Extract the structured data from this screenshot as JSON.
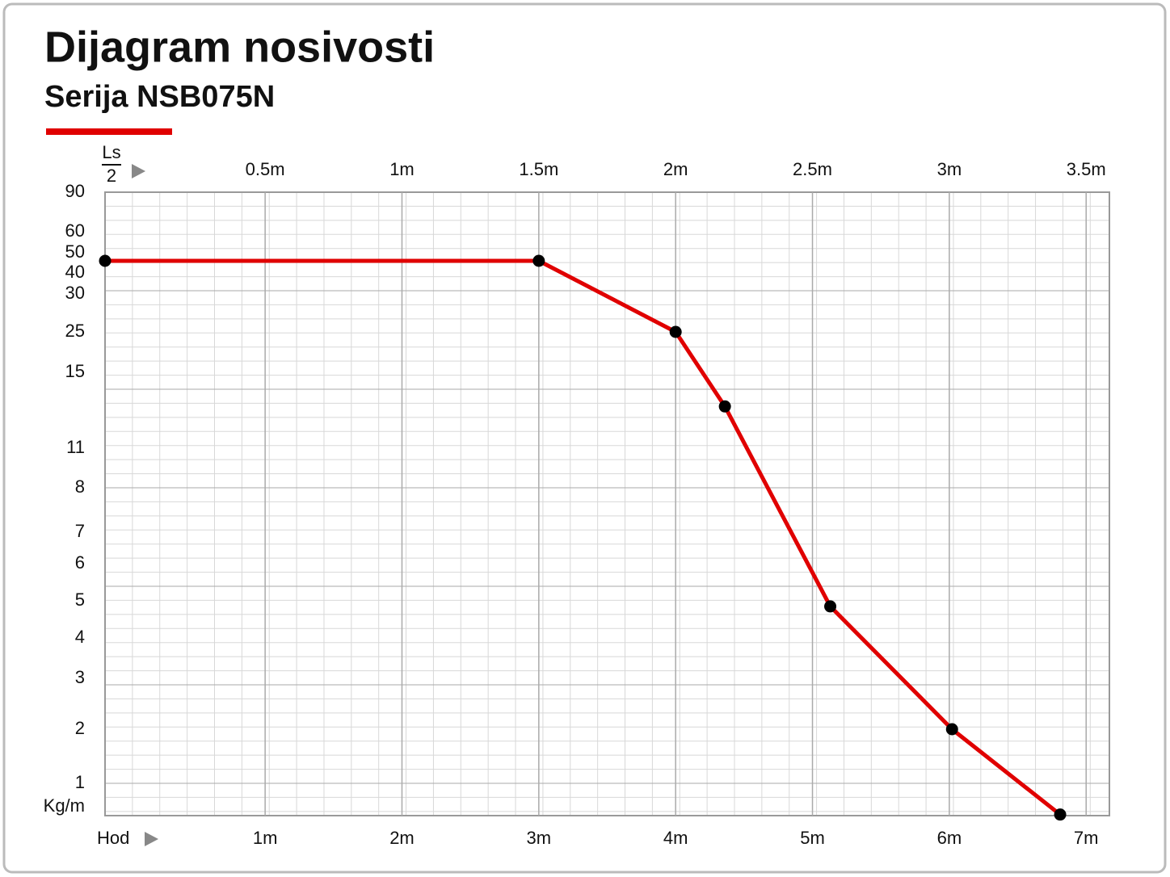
{
  "chart_data": {
    "type": "line",
    "title": "Dijagram nosivosti",
    "subtitle": "Serija NSB075N",
    "x_label": "Hod",
    "x2_label_top": "Ls",
    "x2_label_bottom": "2",
    "y_label": "Kg/m",
    "x": [
      -0.17,
      3,
      4,
      4.36,
      5.13,
      6.02,
      6.81
    ],
    "series": [
      {
        "name": "NSB075N",
        "color": "#e00000",
        "values": [
          46,
          46,
          25,
          13.2,
          4.85,
          2,
          0.42
        ]
      }
    ],
    "xlim": [
      -0.17,
      7.17
    ],
    "xticks": [
      {
        "value": 1,
        "label": "1m"
      },
      {
        "value": 2,
        "label": "2m"
      },
      {
        "value": 3,
        "label": "3m"
      },
      {
        "value": 4,
        "label": "4m"
      },
      {
        "value": 5,
        "label": "5m"
      },
      {
        "value": 6,
        "label": "6m"
      },
      {
        "value": 7,
        "label": "7m"
      }
    ],
    "x2lim": [
      -0.085,
      3.585
    ],
    "x2ticks": [
      {
        "value": 0.5,
        "label": "0.5m"
      },
      {
        "value": 1,
        "label": "1m"
      },
      {
        "value": 1.5,
        "label": "1.5m"
      },
      {
        "value": 2,
        "label": "2m"
      },
      {
        "value": 2.5,
        "label": "2.5m"
      },
      {
        "value": 3,
        "label": "3m"
      },
      {
        "value": 3.5,
        "label": "3.5m"
      }
    ],
    "ylim": [
      0.4,
      90
    ],
    "yticks": [
      90,
      60,
      50,
      40,
      30,
      25,
      15,
      11,
      8,
      7,
      6,
      5,
      4,
      3,
      2,
      1
    ],
    "grid": true
  }
}
